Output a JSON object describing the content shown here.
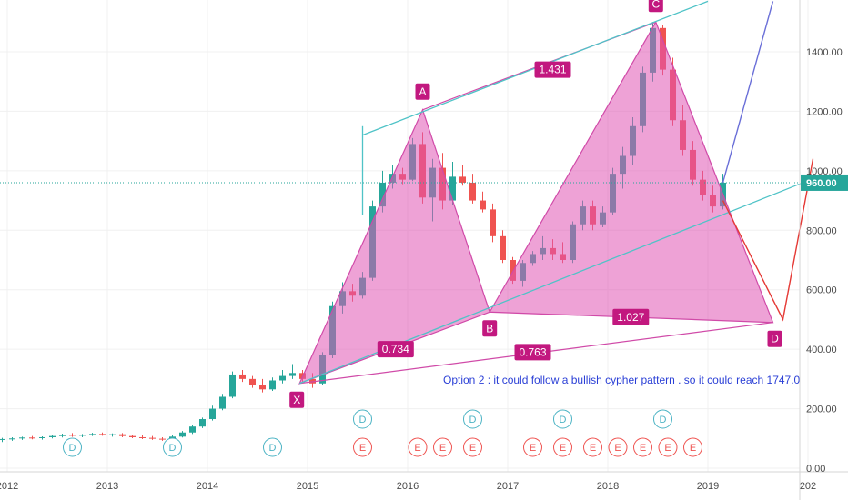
{
  "chart_data": {
    "type": "candlestick",
    "x_labels": [
      "2012",
      "2013",
      "2014",
      "2015",
      "2016",
      "2017",
      "2018",
      "2019",
      "202"
    ],
    "y_ticks": [
      "0.00",
      "200.00",
      "400.00",
      "600.00",
      "800.00",
      "1000.00",
      "1200.00",
      "1400.00"
    ],
    "ylim": [
      0,
      1570
    ],
    "current_price": 960,
    "current_price_label": "960.00",
    "colors": {
      "up": "#26a69a",
      "down": "#ef5350",
      "pattern_fill": "#e055b5",
      "pattern_line": "#d04aa8",
      "channel": "#4fc3c7",
      "projection": "#6a6fd8",
      "target": "#e53935"
    },
    "candles": [
      {
        "t": 2011.95,
        "o": 95,
        "h": 102,
        "l": 88,
        "c": 98
      },
      {
        "t": 2012.05,
        "o": 98,
        "h": 104,
        "l": 92,
        "c": 100
      },
      {
        "t": 2012.15,
        "o": 100,
        "h": 106,
        "l": 95,
        "c": 103
      },
      {
        "t": 2012.25,
        "o": 103,
        "h": 108,
        "l": 97,
        "c": 101
      },
      {
        "t": 2012.35,
        "o": 101,
        "h": 107,
        "l": 96,
        "c": 104
      },
      {
        "t": 2012.45,
        "o": 104,
        "h": 112,
        "l": 100,
        "c": 108
      },
      {
        "t": 2012.55,
        "o": 108,
        "h": 116,
        "l": 103,
        "c": 112
      },
      {
        "t": 2012.65,
        "o": 112,
        "h": 118,
        "l": 105,
        "c": 109
      },
      {
        "t": 2012.75,
        "o": 109,
        "h": 115,
        "l": 104,
        "c": 113
      },
      {
        "t": 2012.85,
        "o": 113,
        "h": 119,
        "l": 108,
        "c": 115
      },
      {
        "t": 2012.95,
        "o": 115,
        "h": 120,
        "l": 109,
        "c": 111
      },
      {
        "t": 2013.05,
        "o": 111,
        "h": 117,
        "l": 106,
        "c": 114
      },
      {
        "t": 2013.15,
        "o": 114,
        "h": 118,
        "l": 104,
        "c": 108
      },
      {
        "t": 2013.25,
        "o": 108,
        "h": 113,
        "l": 101,
        "c": 104
      },
      {
        "t": 2013.35,
        "o": 104,
        "h": 110,
        "l": 98,
        "c": 102
      },
      {
        "t": 2013.45,
        "o": 102,
        "h": 108,
        "l": 95,
        "c": 99
      },
      {
        "t": 2013.55,
        "o": 99,
        "h": 104,
        "l": 92,
        "c": 96
      },
      {
        "t": 2013.65,
        "o": 96,
        "h": 110,
        "l": 94,
        "c": 106
      },
      {
        "t": 2013.75,
        "o": 106,
        "h": 125,
        "l": 103,
        "c": 120
      },
      {
        "t": 2013.85,
        "o": 120,
        "h": 145,
        "l": 115,
        "c": 140
      },
      {
        "t": 2013.95,
        "o": 140,
        "h": 170,
        "l": 135,
        "c": 165
      },
      {
        "t": 2014.05,
        "o": 165,
        "h": 210,
        "l": 160,
        "c": 200
      },
      {
        "t": 2014.15,
        "o": 200,
        "h": 250,
        "l": 195,
        "c": 240
      },
      {
        "t": 2014.25,
        "o": 240,
        "h": 325,
        "l": 235,
        "c": 315
      },
      {
        "t": 2014.35,
        "o": 315,
        "h": 330,
        "l": 290,
        "c": 300
      },
      {
        "t": 2014.45,
        "o": 300,
        "h": 310,
        "l": 270,
        "c": 280
      },
      {
        "t": 2014.55,
        "o": 280,
        "h": 300,
        "l": 255,
        "c": 265
      },
      {
        "t": 2014.65,
        "o": 265,
        "h": 305,
        "l": 260,
        "c": 295
      },
      {
        "t": 2014.75,
        "o": 295,
        "h": 330,
        "l": 285,
        "c": 310
      },
      {
        "t": 2014.85,
        "o": 310,
        "h": 350,
        "l": 300,
        "c": 320
      },
      {
        "t": 2014.95,
        "o": 320,
        "h": 330,
        "l": 290,
        "c": 300
      },
      {
        "t": 2015.05,
        "o": 300,
        "h": 320,
        "l": 270,
        "c": 285
      },
      {
        "t": 2015.15,
        "o": 285,
        "h": 390,
        "l": 280,
        "c": 380
      },
      {
        "t": 2015.25,
        "o": 380,
        "h": 560,
        "l": 370,
        "c": 545
      },
      {
        "t": 2015.35,
        "o": 545,
        "h": 625,
        "l": 520,
        "c": 595
      },
      {
        "t": 2015.45,
        "o": 595,
        "h": 620,
        "l": 560,
        "c": 580
      },
      {
        "t": 2015.55,
        "o": 580,
        "h": 660,
        "l": 570,
        "c": 640
      },
      {
        "t": 2015.65,
        "o": 640,
        "h": 900,
        "l": 630,
        "c": 880
      },
      {
        "t": 2015.75,
        "o": 880,
        "h": 1000,
        "l": 860,
        "c": 960
      },
      {
        "t": 2015.85,
        "o": 960,
        "h": 1020,
        "l": 940,
        "c": 990
      },
      {
        "t": 2015.95,
        "o": 990,
        "h": 1010,
        "l": 955,
        "c": 970
      },
      {
        "t": 2016.05,
        "o": 970,
        "h": 1110,
        "l": 965,
        "c": 1090
      },
      {
        "t": 2016.15,
        "o": 1090,
        "h": 1130,
        "l": 890,
        "c": 910
      },
      {
        "t": 2016.25,
        "o": 910,
        "h": 1040,
        "l": 830,
        "c": 1010
      },
      {
        "t": 2016.35,
        "o": 1010,
        "h": 1060,
        "l": 870,
        "c": 900
      },
      {
        "t": 2016.45,
        "o": 900,
        "h": 1030,
        "l": 885,
        "c": 980
      },
      {
        "t": 2016.55,
        "o": 980,
        "h": 1020,
        "l": 950,
        "c": 960
      },
      {
        "t": 2016.65,
        "o": 960,
        "h": 990,
        "l": 890,
        "c": 900
      },
      {
        "t": 2016.75,
        "o": 900,
        "h": 930,
        "l": 860,
        "c": 870
      },
      {
        "t": 2016.85,
        "o": 870,
        "h": 890,
        "l": 760,
        "c": 780
      },
      {
        "t": 2016.95,
        "o": 780,
        "h": 800,
        "l": 690,
        "c": 700
      },
      {
        "t": 2017.05,
        "o": 700,
        "h": 710,
        "l": 620,
        "c": 630
      },
      {
        "t": 2017.15,
        "o": 630,
        "h": 700,
        "l": 610,
        "c": 690
      },
      {
        "t": 2017.25,
        "o": 690,
        "h": 730,
        "l": 680,
        "c": 720
      },
      {
        "t": 2017.35,
        "o": 720,
        "h": 780,
        "l": 700,
        "c": 740
      },
      {
        "t": 2017.45,
        "o": 740,
        "h": 770,
        "l": 700,
        "c": 720
      },
      {
        "t": 2017.55,
        "o": 720,
        "h": 760,
        "l": 690,
        "c": 700
      },
      {
        "t": 2017.65,
        "o": 700,
        "h": 830,
        "l": 690,
        "c": 820
      },
      {
        "t": 2017.75,
        "o": 820,
        "h": 900,
        "l": 800,
        "c": 880
      },
      {
        "t": 2017.85,
        "o": 880,
        "h": 900,
        "l": 800,
        "c": 820
      },
      {
        "t": 2017.95,
        "o": 820,
        "h": 880,
        "l": 810,
        "c": 860
      },
      {
        "t": 2018.05,
        "o": 860,
        "h": 1010,
        "l": 850,
        "c": 990
      },
      {
        "t": 2018.15,
        "o": 990,
        "h": 1080,
        "l": 940,
        "c": 1050
      },
      {
        "t": 2018.25,
        "o": 1050,
        "h": 1180,
        "l": 1020,
        "c": 1150
      },
      {
        "t": 2018.35,
        "o": 1150,
        "h": 1350,
        "l": 1130,
        "c": 1330
      },
      {
        "t": 2018.45,
        "o": 1330,
        "h": 1500,
        "l": 1300,
        "c": 1480
      },
      {
        "t": 2018.55,
        "o": 1480,
        "h": 1490,
        "l": 1320,
        "c": 1340
      },
      {
        "t": 2018.65,
        "o": 1340,
        "h": 1380,
        "l": 1150,
        "c": 1170
      },
      {
        "t": 2018.75,
        "o": 1170,
        "h": 1220,
        "l": 1050,
        "c": 1070
      },
      {
        "t": 2018.85,
        "o": 1070,
        "h": 1100,
        "l": 950,
        "c": 970
      },
      {
        "t": 2018.95,
        "o": 970,
        "h": 1000,
        "l": 900,
        "c": 920
      },
      {
        "t": 2019.05,
        "o": 920,
        "h": 950,
        "l": 860,
        "c": 880
      },
      {
        "t": 2019.15,
        "o": 880,
        "h": 990,
        "l": 870,
        "c": 960
      }
    ],
    "pattern_points": [
      {
        "label": "X",
        "t": 2014.92,
        "v": 285
      },
      {
        "label": "A",
        "t": 2016.15,
        "v": 1205
      },
      {
        "label": "B",
        "t": 2016.82,
        "v": 525
      },
      {
        "label": "C",
        "t": 2018.48,
        "v": 1500
      },
      {
        "label": "D",
        "t": 2019.65,
        "v": 490
      }
    ],
    "ratios": [
      {
        "text": "1.431",
        "t": 2017.45,
        "v": 1340
      },
      {
        "text": "0.734",
        "t": 2015.88,
        "v": 400
      },
      {
        "text": "0.763",
        "t": 2017.25,
        "v": 390
      },
      {
        "text": "1.027",
        "t": 2018.23,
        "v": 508
      }
    ],
    "annotation": "Option 2 : it could follow a bullish cypher pattern . so it could reach 1747.0",
    "projection": {
      "from": {
        "t": 2019.15,
        "v": 960
      },
      "to": {
        "t": 2019.65,
        "v": 1570
      }
    },
    "target_path": [
      {
        "t": 2019.15,
        "v": 900
      },
      {
        "t": 2019.75,
        "v": 500
      },
      {
        "t": 2020.05,
        "v": 1040
      }
    ],
    "channel_upper": [
      {
        "t": 2015.55,
        "v": 1120
      },
      {
        "t": 2019.0,
        "v": 1570
      }
    ],
    "channel_upper_stub": [
      {
        "t": 2015.55,
        "v": 850
      },
      {
        "t": 2015.55,
        "v": 1150
      }
    ],
    "channel_lower": [
      {
        "t": 2014.92,
        "v": 285
      },
      {
        "t": 2019.95,
        "v": 960
      }
    ],
    "event_markers_D": [
      2012.65,
      2013.65,
      2014.65,
      2015.55,
      2016.65,
      2017.55,
      2018.55
    ],
    "event_markers_E": [
      2015.55,
      2016.1,
      2016.35,
      2016.65,
      2017.25,
      2017.55,
      2017.85,
      2018.1,
      2018.35,
      2018.6,
      2018.85
    ],
    "marker_letter_D": "D",
    "marker_letter_E": "E"
  }
}
